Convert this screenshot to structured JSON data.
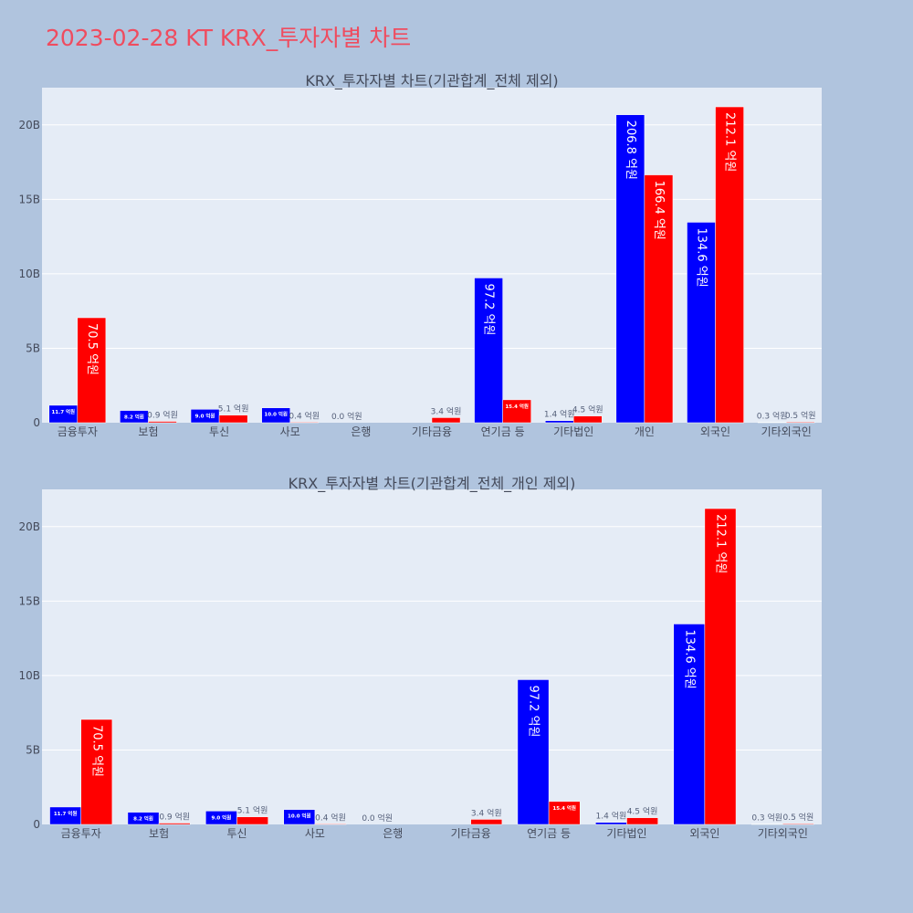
{
  "title": "2023-02-28 KT KRX_투자자별 차트",
  "colors": {
    "buy": "#0000ff",
    "sell": "#ff0000",
    "plot_bg": "#e5ecf6",
    "page_bg": "#b0c4de"
  },
  "chart_data": [
    {
      "type": "bar",
      "title": "KRX_투자자별 차트(기관합계_전체 제외)",
      "xlabel": "",
      "ylabel": "",
      "ylim": [
        0,
        22500000000
      ],
      "yticks": [
        0,
        5000000000,
        10000000000,
        15000000000,
        20000000000
      ],
      "ytick_labels": [
        "0",
        "5B",
        "10B",
        "15B",
        "20B"
      ],
      "grid": true,
      "categories": [
        "금융투자",
        "보험",
        "투신",
        "사모",
        "은행",
        "기타금융",
        "연기금 등",
        "기타법인",
        "개인",
        "외국인",
        "기타외국인"
      ],
      "series": [
        {
          "color": "#0000ff",
          "values": [
            1170000000,
            820000000,
            900000000,
            1000000000,
            0,
            0,
            9720000000,
            140000000,
            20680000000,
            13460000000,
            30000000
          ],
          "labels": [
            "11.7 억원",
            "8.2 억원",
            "9.0 억원",
            "10.0 억원",
            "0.0 억원",
            "",
            "97.2 억원",
            "1.4 억원",
            "206.8 억원",
            "134.6 억원",
            "0.3 억원"
          ]
        },
        {
          "color": "#ff0000",
          "values": [
            7050000000,
            90000000,
            510000000,
            40000000,
            0,
            340000000,
            1540000000,
            450000000,
            16640000000,
            21210000000,
            50000000
          ],
          "labels": [
            "70.5 억원",
            "0.9 억원",
            "5.1 억원",
            "0.4 억원",
            "",
            "3.4 억원",
            "15.4 억원",
            "4.5 억원",
            "166.4 억원",
            "212.1 억원",
            "0.5 억원"
          ]
        }
      ]
    },
    {
      "type": "bar",
      "title": "KRX_투자자별 차트(기관합계_전체_개인 제외)",
      "xlabel": "",
      "ylabel": "",
      "ylim": [
        0,
        22500000000
      ],
      "yticks": [
        0,
        5000000000,
        10000000000,
        15000000000,
        20000000000
      ],
      "ytick_labels": [
        "0",
        "5B",
        "10B",
        "15B",
        "20B"
      ],
      "grid": true,
      "categories": [
        "금융투자",
        "보험",
        "투신",
        "사모",
        "은행",
        "기타금융",
        "연기금 등",
        "기타법인",
        "외국인",
        "기타외국인"
      ],
      "series": [
        {
          "color": "#0000ff",
          "values": [
            1170000000,
            820000000,
            900000000,
            1000000000,
            0,
            0,
            9720000000,
            140000000,
            13460000000,
            30000000
          ],
          "labels": [
            "11.7 억원",
            "8.2 억원",
            "9.0 억원",
            "10.0 억원",
            "0.0 억원",
            "",
            "97.2 억원",
            "1.4 억원",
            "134.6 억원",
            "0.3 억원"
          ]
        },
        {
          "color": "#ff0000",
          "values": [
            7050000000,
            90000000,
            510000000,
            40000000,
            0,
            340000000,
            1540000000,
            450000000,
            21210000000,
            50000000
          ],
          "labels": [
            "70.5 억원",
            "0.9 억원",
            "5.1 억원",
            "0.4 억원",
            "",
            "3.4 억원",
            "15.4 억원",
            "4.5 억원",
            "212.1 억원",
            "0.5 억원"
          ]
        }
      ]
    }
  ]
}
